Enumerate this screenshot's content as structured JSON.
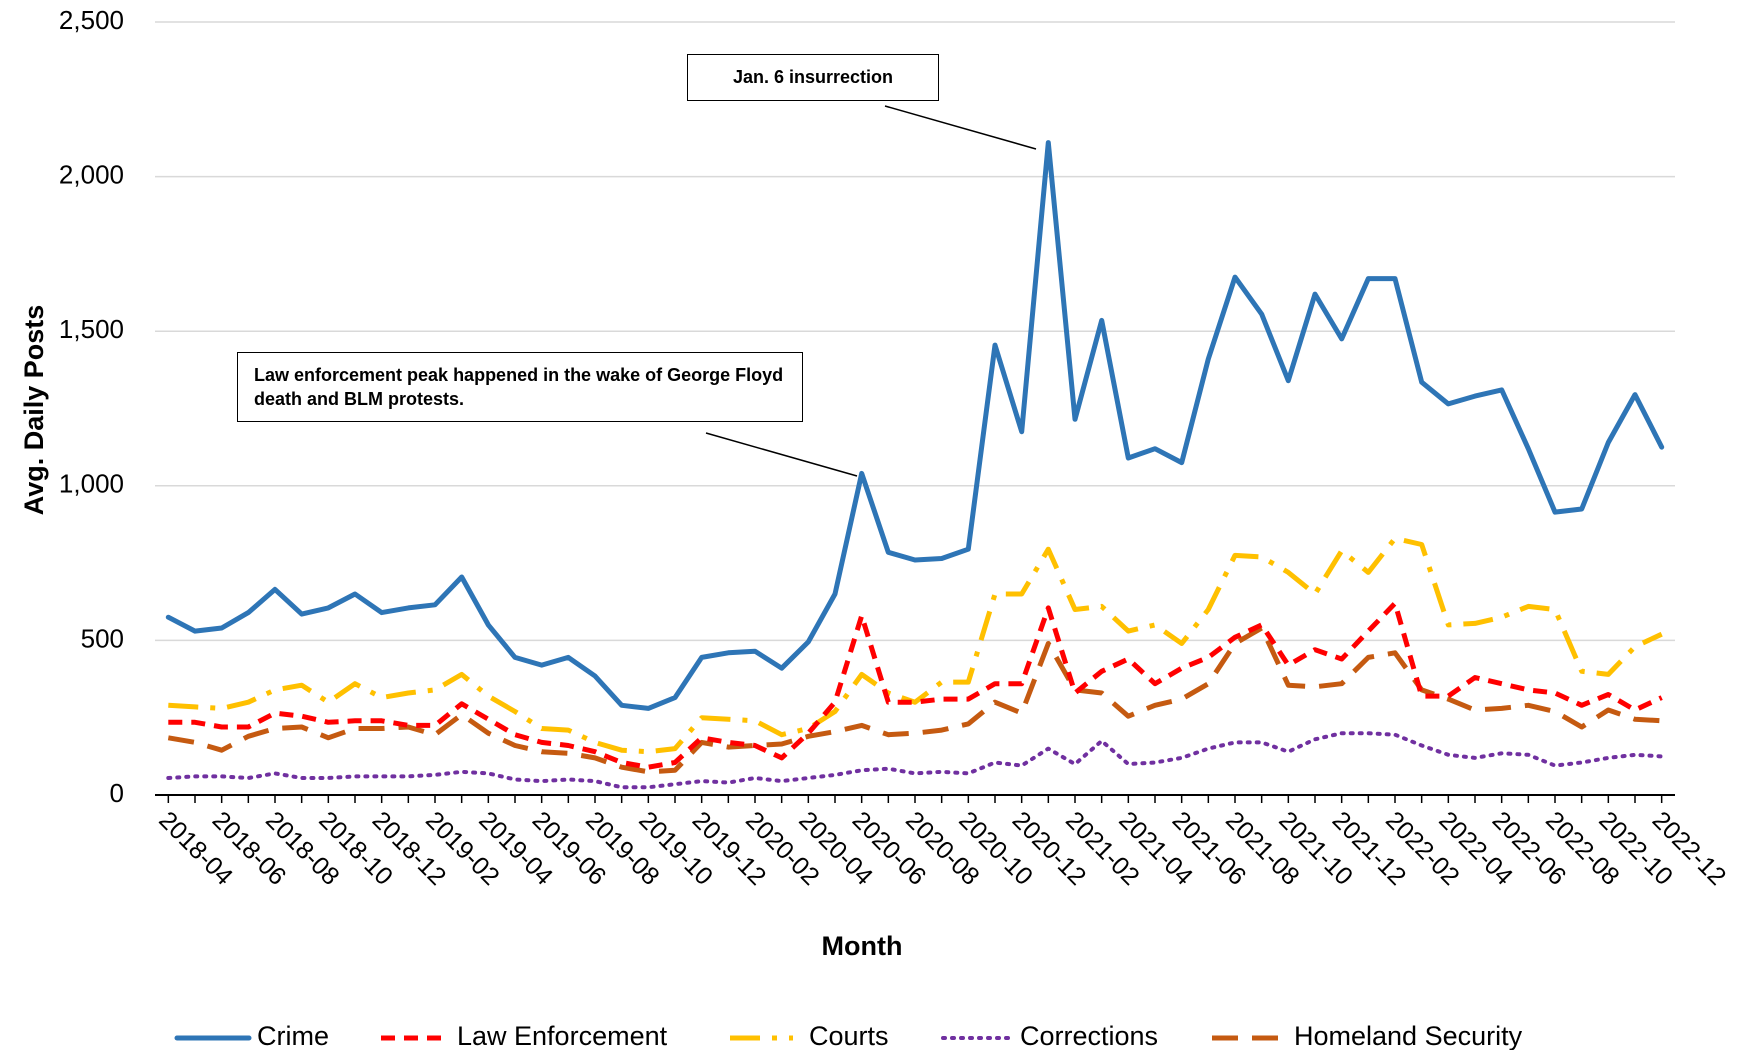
{
  "chart_data": {
    "type": "line",
    "x_label": "Month",
    "y_label": "Avg. Daily Posts",
    "categories": [
      "2018-04",
      null,
      "2018-06",
      null,
      "2018-08",
      null,
      "2018-10",
      null,
      "2018-12",
      null,
      "2019-02",
      null,
      "2019-04",
      null,
      "2019-06",
      null,
      "2019-08",
      null,
      "2019-10",
      null,
      "2019-12",
      null,
      "2020-02",
      null,
      "2020-04",
      null,
      "2020-06",
      null,
      "2020-08",
      null,
      "2020-10",
      null,
      "2020-12",
      null,
      "2021-02",
      null,
      "2021-04",
      null,
      "2021-06",
      null,
      "2021-08",
      null,
      "2021-10",
      null,
      "2021-12",
      null,
      "2022-02",
      null,
      "2022-04",
      null,
      "2022-06",
      null,
      "2022-08",
      null,
      "2022-10",
      null,
      "2022-12"
    ],
    "series": [
      {
        "name": "Crime",
        "color": "#2e75b6",
        "values": [
          575,
          530,
          540,
          590,
          665,
          585,
          605,
          650,
          590,
          605,
          615,
          705,
          550,
          445,
          420,
          445,
          385,
          290,
          280,
          315,
          445,
          460,
          465,
          410,
          495,
          650,
          1040,
          785,
          760,
          765,
          795,
          1455,
          1175,
          2110,
          1215,
          1535,
          1090,
          1120,
          1075,
          1410,
          1675,
          1555,
          1340,
          1620,
          1475,
          1670,
          1670,
          1335,
          1265,
          1290,
          1310,
          1120,
          915,
          925,
          1140,
          1295,
          1125
        ]
      },
      {
        "name": "Law Enforcement",
        "color": "#ff0000",
        "values": [
          235,
          235,
          220,
          220,
          265,
          255,
          235,
          240,
          240,
          225,
          225,
          295,
          245,
          195,
          170,
          160,
          140,
          105,
          90,
          105,
          185,
          170,
          160,
          120,
          200,
          300,
          580,
          300,
          300,
          310,
          310,
          360,
          360,
          605,
          330,
          400,
          440,
          360,
          410,
          445,
          510,
          550,
          420,
          470,
          440,
          530,
          620,
          320,
          320,
          380,
          360,
          340,
          330,
          290,
          325,
          275,
          315
        ]
      },
      {
        "name": "Courts",
        "color": "#ffc000",
        "values": [
          290,
          285,
          280,
          300,
          340,
          355,
          300,
          360,
          315,
          330,
          340,
          390,
          320,
          270,
          215,
          210,
          170,
          145,
          140,
          150,
          250,
          245,
          240,
          195,
          215,
          270,
          390,
          330,
          300,
          365,
          365,
          650,
          650,
          795,
          600,
          610,
          530,
          550,
          490,
          600,
          775,
          770,
          720,
          650,
          790,
          720,
          830,
          810,
          550,
          555,
          575,
          610,
          600,
          400,
          390,
          480,
          520
        ]
      },
      {
        "name": "Corrections",
        "color": "#7030a0",
        "values": [
          55,
          60,
          60,
          55,
          70,
          55,
          55,
          60,
          60,
          60,
          65,
          75,
          70,
          50,
          45,
          50,
          45,
          25,
          25,
          35,
          45,
          40,
          55,
          45,
          55,
          65,
          80,
          85,
          70,
          75,
          70,
          105,
          95,
          150,
          100,
          175,
          100,
          105,
          120,
          150,
          170,
          170,
          140,
          180,
          200,
          200,
          195,
          160,
          130,
          120,
          135,
          130,
          95,
          105,
          120,
          130,
          125
        ]
      },
      {
        "name": "Homeland Security",
        "color": "#c55a11",
        "values": [
          185,
          170,
          145,
          190,
          215,
          220,
          185,
          215,
          215,
          220,
          195,
          260,
          200,
          160,
          140,
          135,
          120,
          90,
          75,
          80,
          170,
          155,
          160,
          165,
          190,
          205,
          225,
          195,
          200,
          210,
          230,
          300,
          265,
          490,
          340,
          330,
          255,
          290,
          310,
          360,
          490,
          540,
          355,
          350,
          360,
          445,
          460,
          340,
          310,
          275,
          280,
          290,
          270,
          220,
          275,
          245,
          240
        ]
      }
    ],
    "ylim": [
      0,
      2500
    ],
    "yticks": [
      0,
      500,
      {
        "value": 1000,
        "label": "1,000"
      },
      {
        "value": 1500,
        "label": "1,500"
      },
      {
        "value": 2000,
        "label": "2,000"
      },
      {
        "value": 2500,
        "label": "2,500"
      }
    ],
    "grid": true,
    "legend": "bottom",
    "annotations": [
      "Jan. 6 insurrection",
      "Law enforcement peak happened in the wake of George Floyd death and BLM protests."
    ]
  }
}
